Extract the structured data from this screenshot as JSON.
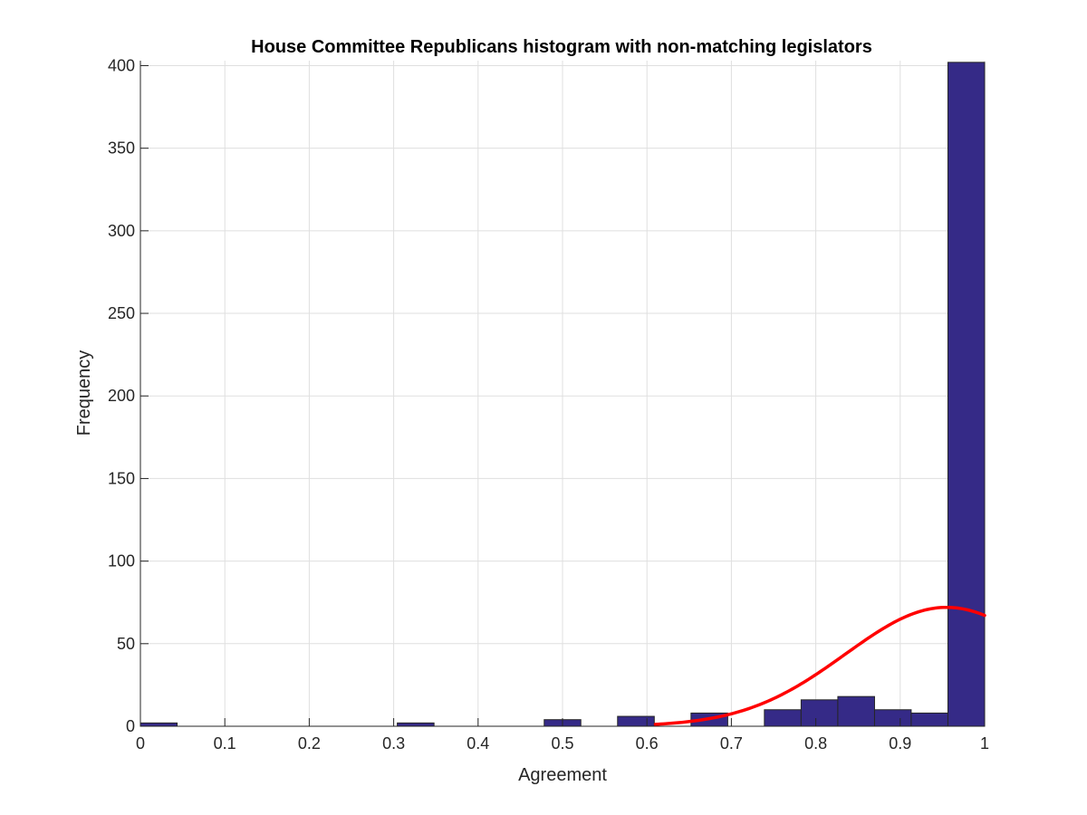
{
  "chart_data": {
    "type": "bar",
    "title": "House Committee Republicans histogram with non-matching legislators",
    "xlabel": "Agreement",
    "ylabel": "Frequency",
    "xlim": [
      0,
      1
    ],
    "ylim": [
      0,
      403
    ],
    "grid": true,
    "xticks": [
      {
        "value": 0,
        "label": "0"
      },
      {
        "value": 0.1,
        "label": "0.1"
      },
      {
        "value": 0.2,
        "label": "0.2"
      },
      {
        "value": 0.3,
        "label": "0.3"
      },
      {
        "value": 0.4,
        "label": "0.4"
      },
      {
        "value": 0.5,
        "label": "0.5"
      },
      {
        "value": 0.6,
        "label": "0.6"
      },
      {
        "value": 0.7,
        "label": "0.7"
      },
      {
        "value": 0.8,
        "label": "0.8"
      },
      {
        "value": 0.9,
        "label": "0.9"
      },
      {
        "value": 1,
        "label": "1"
      }
    ],
    "yticks": [
      {
        "value": 0,
        "label": "0"
      },
      {
        "value": 50,
        "label": "50"
      },
      {
        "value": 100,
        "label": "100"
      },
      {
        "value": 150,
        "label": "150"
      },
      {
        "value": 200,
        "label": "200"
      },
      {
        "value": 250,
        "label": "250"
      },
      {
        "value": 300,
        "label": "300"
      },
      {
        "value": 350,
        "label": "350"
      },
      {
        "value": 400,
        "label": "400"
      }
    ],
    "bin_width": 0.0435,
    "bins": [
      {
        "x0": 0.0,
        "x1": 0.0435,
        "count": 2
      },
      {
        "x0": 0.3043,
        "x1": 0.3478,
        "count": 2
      },
      {
        "x0": 0.4783,
        "x1": 0.5217,
        "count": 4
      },
      {
        "x0": 0.5652,
        "x1": 0.6087,
        "count": 6
      },
      {
        "x0": 0.6522,
        "x1": 0.6957,
        "count": 8
      },
      {
        "x0": 0.7391,
        "x1": 0.7826,
        "count": 10
      },
      {
        "x0": 0.7826,
        "x1": 0.8261,
        "count": 16
      },
      {
        "x0": 0.8261,
        "x1": 0.8696,
        "count": 18
      },
      {
        "x0": 0.8696,
        "x1": 0.913,
        "count": 10
      },
      {
        "x0": 0.913,
        "x1": 0.9565,
        "count": 8
      },
      {
        "x0": 0.9565,
        "x1": 1.0,
        "count": 402
      }
    ],
    "fit_curve": {
      "type": "normal",
      "mean": 0.955,
      "sigma": 0.12,
      "peak": 72,
      "x_range": [
        0.61,
        1.0
      ]
    },
    "colors": {
      "bar_fill": "#352a87",
      "bar_edge": "#262626",
      "fit_line": "#ff0000",
      "grid": "#dfdfdf",
      "axis": "#262626"
    }
  }
}
